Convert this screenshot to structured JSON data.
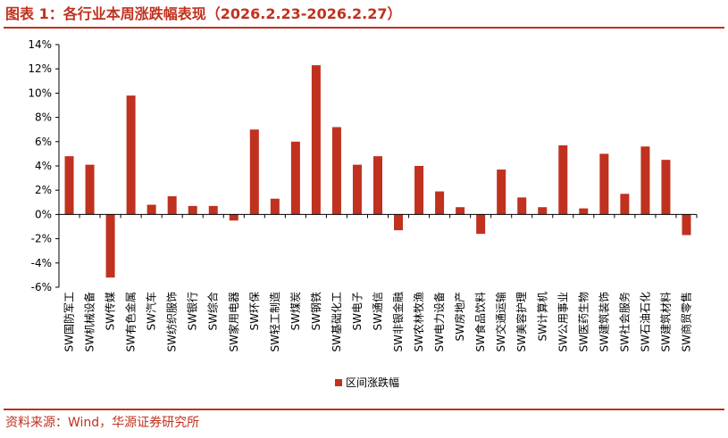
{
  "header": {
    "title": "图表 1：各行业本周涨跌幅表现（2026.2.23-2026.2.27）"
  },
  "footer": {
    "source": "资料来源：Wind，华源证券研究所"
  },
  "chart_data": {
    "type": "bar",
    "title": "",
    "xlabel": "",
    "ylabel": "",
    "ylim": [
      -6,
      14
    ],
    "yticks": [
      -6,
      -4,
      -2,
      0,
      2,
      4,
      6,
      8,
      10,
      12,
      14
    ],
    "ytick_labels": [
      "-6%",
      "-4%",
      "-2%",
      "0%",
      "2%",
      "4%",
      "6%",
      "8%",
      "10%",
      "12%",
      "14%"
    ],
    "grid": false,
    "legend": "bottom-center",
    "bar_color": "#c0311f",
    "categories": [
      "SW国防军工",
      "SW机械设备",
      "SW传媒",
      "SW有色金属",
      "SW汽车",
      "SW纺织服饰",
      "SW银行",
      "SW综合",
      "SW家用电器",
      "SW环保",
      "SW轻工制造",
      "SW煤炭",
      "SW钢铁",
      "SW基础化工",
      "SW电子",
      "SW通信",
      "SW非银金融",
      "SW农林牧渔",
      "SW电力设备",
      "SW房地产",
      "SW食品饮料",
      "SW交通运输",
      "SW美容护理",
      "SW计算机",
      "SW公用事业",
      "SW医药生物",
      "SW建筑装饰",
      "SW社会服务",
      "SW石油石化",
      "SW建筑材料",
      "SW商贸零售"
    ],
    "series": [
      {
        "name": "区间涨跌幅",
        "values": [
          4.8,
          4.1,
          -5.2,
          9.8,
          0.8,
          1.5,
          0.7,
          0.7,
          -0.5,
          7.0,
          1.3,
          6.0,
          12.3,
          7.2,
          4.1,
          4.8,
          -1.3,
          4.0,
          1.9,
          0.6,
          -1.6,
          3.7,
          1.4,
          0.6,
          5.7,
          0.5,
          5.0,
          1.7,
          5.6,
          4.5,
          -1.7
        ]
      }
    ]
  }
}
